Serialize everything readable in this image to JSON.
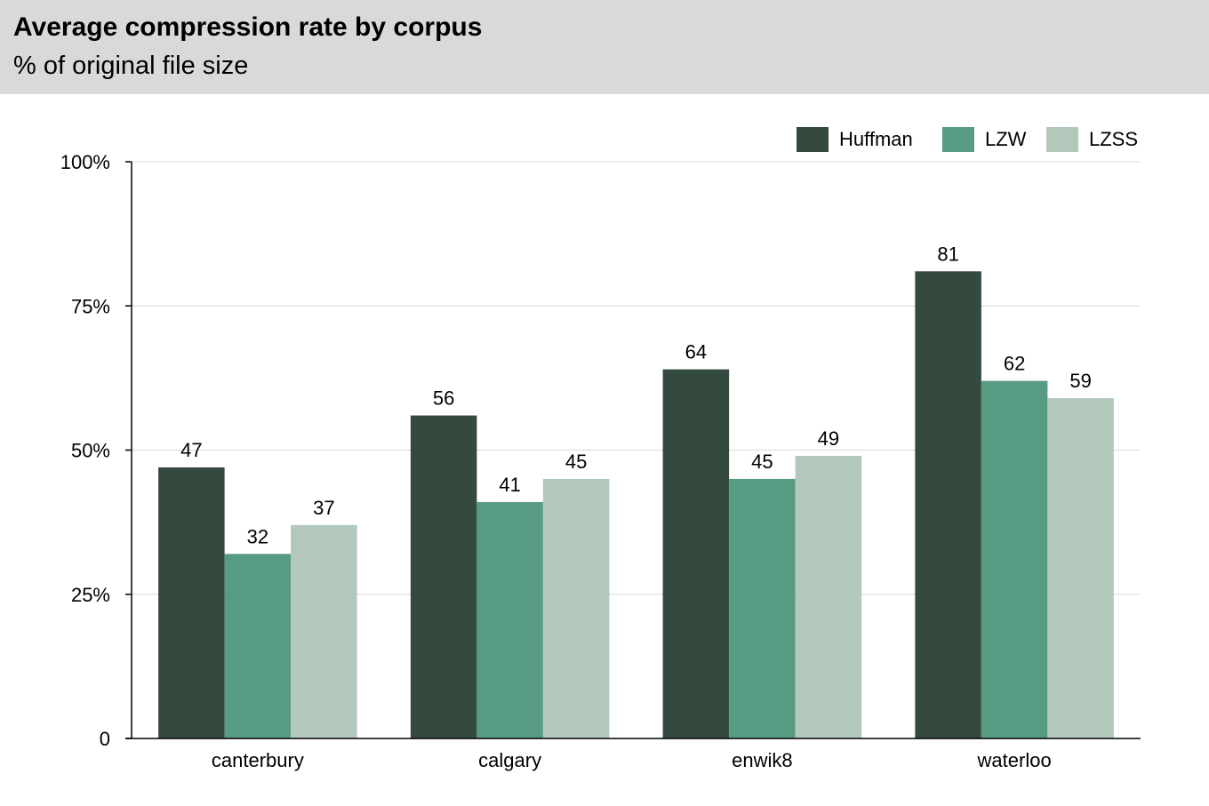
{
  "chart_data": {
    "type": "bar",
    "title": "Average compression rate by corpus",
    "subtitle": "% of original file size",
    "categories": [
      "canterbury",
      "calgary",
      "enwik8",
      "waterloo"
    ],
    "series": [
      {
        "name": "Huffman",
        "values": [
          47,
          56,
          64,
          81
        ],
        "labels": [
          "47",
          "56",
          "64",
          "81"
        ],
        "color": "#344a3f"
      },
      {
        "name": "LZW",
        "values": [
          32,
          41,
          45,
          62
        ],
        "labels": [
          "32",
          "41",
          "45",
          "62"
        ],
        "color": "#589b83"
      },
      {
        "name": "LZSS",
        "values": [
          37,
          45,
          49,
          59
        ],
        "labels": [
          "37",
          "45",
          "49",
          "59"
        ],
        "color": "#b2c8bb"
      }
    ],
    "ylim": [
      0,
      100
    ],
    "yticks": [
      0,
      25,
      50,
      75,
      100
    ],
    "ytick_labels": [
      "0",
      "25%",
      "50%",
      "75%",
      "100%"
    ],
    "grid": true,
    "legend": "top-right"
  }
}
